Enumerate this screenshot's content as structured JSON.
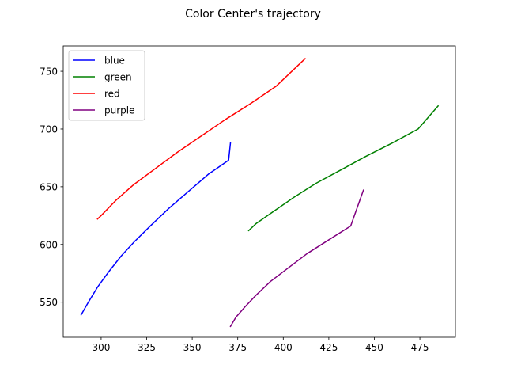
{
  "chart_data": {
    "type": "line",
    "title": "Color Center's trajectory",
    "xlabel": "",
    "ylabel": "",
    "xlim": [
      279.2,
      494.5
    ],
    "ylim": [
      519.6,
      772.0
    ],
    "xticks": [
      300,
      325,
      350,
      375,
      400,
      425,
      450,
      475
    ],
    "yticks": [
      550,
      600,
      650,
      700,
      750
    ],
    "grid": false,
    "legend_position": "top-left",
    "series": [
      {
        "name": "blue",
        "color": "#0000ff",
        "points": [
          [
            289,
            539
          ],
          [
            293,
            550
          ],
          [
            298,
            563
          ],
          [
            304,
            576
          ],
          [
            311,
            590
          ],
          [
            318,
            602
          ],
          [
            327,
            616
          ],
          [
            337,
            631
          ],
          [
            348,
            646
          ],
          [
            359,
            661
          ],
          [
            370,
            673
          ],
          [
            371,
            688
          ]
        ]
      },
      {
        "name": "green",
        "color": "#008000",
        "points": [
          [
            381,
            612
          ],
          [
            385,
            618
          ],
          [
            395,
            629
          ],
          [
            406,
            641
          ],
          [
            418,
            653
          ],
          [
            431,
            664
          ],
          [
            445,
            676
          ],
          [
            460,
            688
          ],
          [
            474,
            700
          ],
          [
            485,
            720
          ]
        ]
      },
      {
        "name": "red",
        "color": "#ff0000",
        "points": [
          [
            298,
            622
          ],
          [
            300,
            625
          ],
          [
            308,
            638
          ],
          [
            318,
            652
          ],
          [
            330,
            666
          ],
          [
            342,
            680
          ],
          [
            355,
            694
          ],
          [
            368,
            708
          ],
          [
            382,
            722
          ],
          [
            396,
            737
          ],
          [
            412,
            761
          ]
        ]
      },
      {
        "name": "purple",
        "color": "#800080",
        "points": [
          [
            371,
            529
          ],
          [
            374,
            537
          ],
          [
            379,
            546
          ],
          [
            385,
            556
          ],
          [
            393,
            568
          ],
          [
            403,
            580
          ],
          [
            413,
            592
          ],
          [
            425,
            604
          ],
          [
            437,
            616
          ],
          [
            444,
            647
          ]
        ]
      }
    ]
  }
}
